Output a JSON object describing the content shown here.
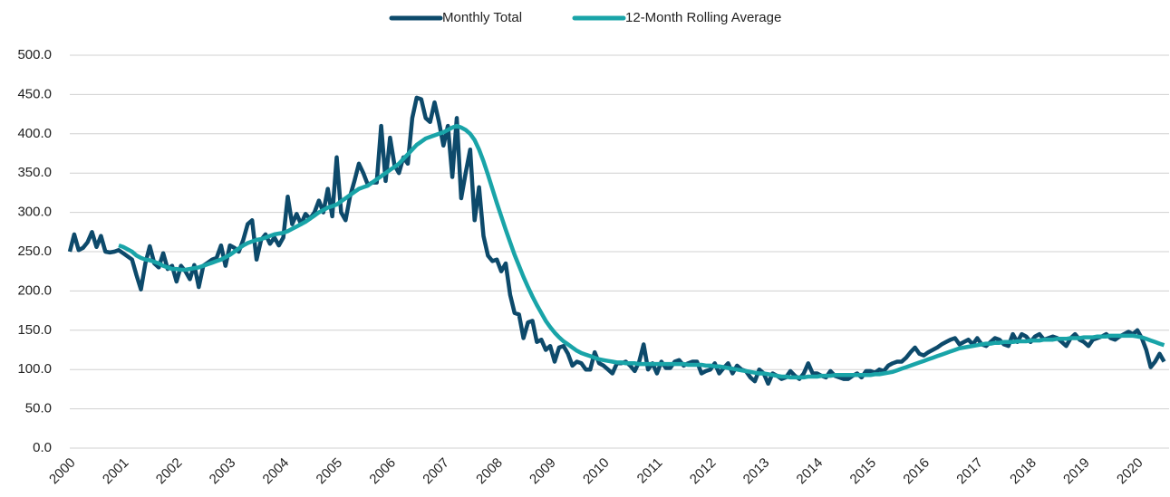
{
  "chart_data": {
    "type": "line",
    "categories": [
      "2000",
      null,
      null,
      null,
      null,
      null,
      null,
      null,
      null,
      null,
      null,
      null,
      "2001",
      null,
      null,
      null,
      null,
      null,
      null,
      null,
      null,
      null,
      null,
      null,
      "2002",
      null,
      null,
      null,
      null,
      null,
      null,
      null,
      null,
      null,
      null,
      null,
      "2003",
      null,
      null,
      null,
      null,
      null,
      null,
      null,
      null,
      null,
      null,
      null,
      "2004",
      null,
      null,
      null,
      null,
      null,
      null,
      null,
      null,
      null,
      null,
      null,
      "2005",
      null,
      null,
      null,
      null,
      null,
      null,
      null,
      null,
      null,
      null,
      null,
      "2006",
      null,
      null,
      null,
      null,
      null,
      null,
      null,
      null,
      null,
      null,
      null,
      "2007",
      null,
      null,
      null,
      null,
      null,
      null,
      null,
      null,
      null,
      null,
      null,
      "2008",
      null,
      null,
      null,
      null,
      null,
      null,
      null,
      null,
      null,
      null,
      null,
      "2009",
      null,
      null,
      null,
      null,
      null,
      null,
      null,
      null,
      null,
      null,
      null,
      "2010",
      null,
      null,
      null,
      null,
      null,
      null,
      null,
      null,
      null,
      null,
      null,
      "2011",
      null,
      null,
      null,
      null,
      null,
      null,
      null,
      null,
      null,
      null,
      null,
      "2012",
      null,
      null,
      null,
      null,
      null,
      null,
      null,
      null,
      null,
      null,
      null,
      "2013",
      null,
      null,
      null,
      null,
      null,
      null,
      null,
      null,
      null,
      null,
      null,
      "2014",
      null,
      null,
      null,
      null,
      null,
      null,
      null,
      null,
      null,
      null,
      null,
      "2015",
      null,
      null,
      null,
      null,
      null,
      null,
      null,
      null,
      null,
      null,
      null,
      "2016",
      null,
      null,
      null,
      null,
      null,
      null,
      null,
      null,
      null,
      null,
      null,
      "2017",
      null,
      null,
      null,
      null,
      null,
      null,
      null,
      null,
      null,
      null,
      null,
      "2018",
      null,
      null,
      null,
      null,
      null,
      null,
      null,
      null,
      null,
      null,
      null,
      "2019",
      null,
      null,
      null,
      null,
      null,
      null,
      null,
      null,
      null,
      null,
      null,
      "2020",
      null,
      null,
      null,
      null,
      null,
      null
    ],
    "series": [
      {
        "name": "Monthly Total",
        "color": "#0d4a6b",
        "values": [
          250,
          272,
          252,
          255,
          262,
          275,
          256,
          270,
          250,
          249,
          250,
          252,
          248,
          244,
          240,
          220,
          202,
          235,
          257,
          235,
          230,
          248,
          228,
          232,
          212,
          232,
          225,
          215,
          233,
          205,
          232,
          236,
          240,
          242,
          258,
          232,
          258,
          255,
          250,
          265,
          285,
          290,
          240,
          265,
          272,
          260,
          268,
          258,
          268,
          320,
          285,
          298,
          285,
          298,
          292,
          300,
          315,
          300,
          330,
          295,
          370,
          300,
          290,
          320,
          340,
          362,
          350,
          335,
          338,
          338,
          410,
          340,
          395,
          360,
          350,
          370,
          362,
          420,
          446,
          444,
          420,
          415,
          440,
          415,
          385,
          410,
          345,
          420,
          318,
          350,
          380,
          290,
          332,
          270,
          245,
          238,
          240,
          225,
          235,
          195,
          172,
          170,
          140,
          160,
          162,
          135,
          138,
          125,
          130,
          110,
          128,
          130,
          120,
          105,
          110,
          108,
          100,
          100,
          122,
          108,
          105,
          100,
          95,
          108,
          108,
          110,
          105,
          98,
          110,
          132,
          100,
          108,
          95,
          110,
          102,
          102,
          110,
          112,
          105,
          108,
          110,
          110,
          95,
          98,
          100,
          108,
          95,
          102,
          108,
          95,
          105,
          100,
          98,
          90,
          85,
          100,
          95,
          82,
          95,
          92,
          88,
          90,
          98,
          92,
          88,
          95,
          108,
          95,
          95,
          92,
          90,
          98,
          92,
          90,
          88,
          88,
          92,
          95,
          90,
          98,
          98,
          96,
          100,
          98,
          105,
          108,
          110,
          110,
          115,
          122,
          128,
          120,
          118,
          122,
          125,
          128,
          132,
          135,
          138,
          140,
          132,
          135,
          138,
          132,
          140,
          132,
          130,
          135,
          140,
          138,
          132,
          130,
          145,
          135,
          145,
          142,
          135,
          142,
          145,
          138,
          140,
          142,
          140,
          135,
          130,
          140,
          145,
          138,
          135,
          130,
          138,
          140,
          142,
          145,
          140,
          138,
          142,
          145,
          148,
          145,
          150,
          140,
          125,
          103,
          110,
          120,
          110
        ]
      },
      {
        "name": "12-Month Rolling Average",
        "color": "#19a4a8",
        "values": [
          null,
          null,
          null,
          null,
          null,
          null,
          null,
          null,
          null,
          null,
          null,
          258,
          256,
          253,
          250,
          245,
          242,
          240,
          239,
          237,
          235,
          232,
          230,
          228,
          228,
          227,
          227,
          228,
          229,
          230,
          232,
          234,
          236,
          238,
          240,
          243,
          246,
          250,
          254,
          258,
          261,
          263,
          265,
          266,
          268,
          270,
          272,
          273,
          274,
          276,
          279,
          282,
          285,
          288,
          292,
          296,
          300,
          303,
          306,
          308,
          310,
          314,
          318,
          322,
          326,
          330,
          332,
          334,
          338,
          342,
          346,
          350,
          354,
          358,
          362,
          368,
          374,
          380,
          386,
          390,
          394,
          396,
          398,
          400,
          402,
          405,
          408,
          410,
          408,
          405,
          400,
          392,
          380,
          365,
          348,
          330,
          312,
          295,
          278,
          262,
          246,
          232,
          218,
          205,
          193,
          182,
          172,
          162,
          154,
          147,
          141,
          136,
          132,
          128,
          124,
          121,
          119,
          117,
          115,
          113,
          112,
          111,
          110,
          109,
          109,
          108,
          108,
          108,
          107,
          107,
          107,
          107,
          107,
          107,
          107,
          107,
          107,
          107,
          107,
          106,
          106,
          106,
          106,
          105,
          105,
          104,
          104,
          103,
          102,
          101,
          100,
          99,
          98,
          97,
          96,
          95,
          95,
          94,
          93,
          92,
          91,
          91,
          90,
          90,
          90,
          90,
          91,
          91,
          91,
          92,
          92,
          92,
          93,
          93,
          93,
          93,
          93,
          93,
          93,
          93,
          93,
          94,
          94,
          95,
          96,
          97,
          99,
          101,
          103,
          105,
          107,
          109,
          111,
          113,
          115,
          117,
          119,
          121,
          123,
          125,
          127,
          128,
          129,
          130,
          131,
          132,
          133,
          133,
          134,
          134,
          135,
          135,
          135,
          136,
          136,
          136,
          137,
          137,
          137,
          138,
          138,
          138,
          139,
          139,
          139,
          140,
          140,
          140,
          141,
          141,
          141,
          142,
          142,
          142,
          143,
          143,
          143,
          143,
          143,
          143,
          142,
          141,
          139,
          137,
          135,
          133,
          131
        ]
      }
    ],
    "ylim": [
      0,
      500
    ],
    "yticks": [
      {
        "value": 0,
        "label": "0.0"
      },
      {
        "value": 50,
        "label": "50.0"
      },
      {
        "value": 100,
        "label": "100.0"
      },
      {
        "value": 150,
        "label": "150.0"
      },
      {
        "value": 200,
        "label": "200.0"
      },
      {
        "value": 250,
        "label": "250.0"
      },
      {
        "value": 300,
        "label": "300.0"
      },
      {
        "value": 350,
        "label": "350.0"
      },
      {
        "value": 400,
        "label": "400.0"
      },
      {
        "value": 450,
        "label": "450.0"
      },
      {
        "value": 500,
        "label": "500.0"
      }
    ],
    "grid": true,
    "legend": "top"
  }
}
